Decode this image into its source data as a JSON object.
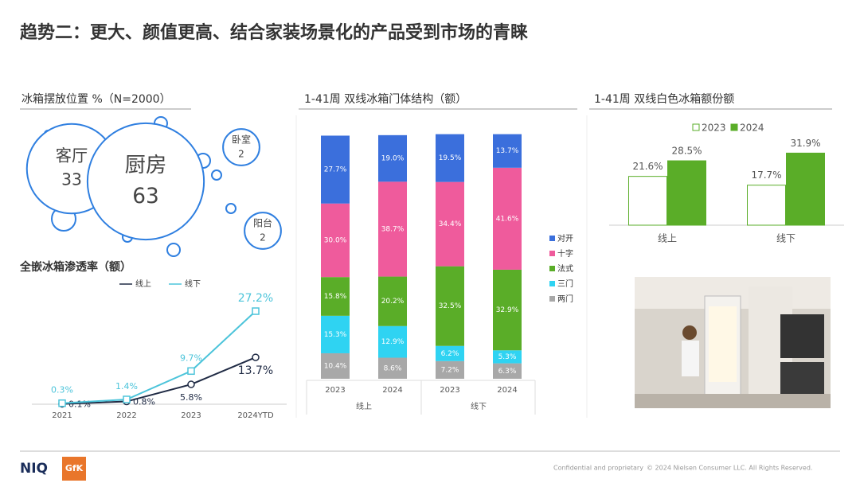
{
  "title": "趋势二：更大、颜值更高、结合家装场景化的产品受到市场的青睐",
  "chart_data": [
    {
      "type": "bubble",
      "title": "冰箱摆放位置 %（N=2000）",
      "categories": [
        "客厅",
        "厨房",
        "卧室",
        "阳台"
      ],
      "values": [
        33,
        63,
        2,
        2
      ],
      "color": "#2f7fe0"
    },
    {
      "type": "line",
      "title": "全嵌冰箱渗透率（额）",
      "categories": [
        "2021",
        "2022",
        "2023",
        "2024YTD"
      ],
      "series": [
        {
          "name": "线上",
          "color": "#1f2a44",
          "values": [
            0.1,
            0.8,
            5.8,
            13.7
          ],
          "value_labels": [
            "0.1%",
            "0.8%",
            "5.8%",
            "13.7%"
          ]
        },
        {
          "name": "线下",
          "color": "#4cc4da",
          "values": [
            0.3,
            1.4,
            9.7,
            27.2
          ],
          "value_labels": [
            "0.3%",
            "1.4%",
            "9.7%",
            "27.2%"
          ]
        }
      ]
    },
    {
      "type": "bar",
      "stacked": true,
      "title": "1-41周 双线冰箱门体结构（额）",
      "categories": [
        "2023",
        "2024",
        "2023",
        "2024"
      ],
      "groups": [
        "线上",
        "线下"
      ],
      "series": [
        {
          "name": "对开",
          "color": "#3b6fdc",
          "values": [
            27.7,
            19.0,
            19.5,
            13.7
          ],
          "value_labels": [
            "27.7%",
            "19.0%",
            "19.5%",
            "13.7%"
          ]
        },
        {
          "name": "十字",
          "color": "#ef5b9c",
          "values": [
            30.0,
            38.7,
            34.4,
            41.6
          ],
          "value_labels": [
            "30.0%",
            "38.7%",
            "34.4%",
            "41.6%"
          ]
        },
        {
          "name": "法式",
          "color": "#5aad28",
          "values": [
            15.8,
            20.2,
            32.5,
            32.9
          ],
          "value_labels": [
            "15.8%",
            "20.2%",
            "32.5%",
            "32.9%"
          ]
        },
        {
          "name": "三门",
          "color": "#2fd3f2",
          "values": [
            15.3,
            12.9,
            6.2,
            5.3
          ],
          "value_labels": [
            "15.3%",
            "12.9%",
            "6.2%",
            "5.3%"
          ]
        },
        {
          "name": "两门",
          "color": "#a8a8a8",
          "values": [
            10.4,
            8.6,
            7.2,
            6.3
          ],
          "value_labels": [
            "10.4%",
            "8.6%",
            "7.2%",
            "6.3%"
          ]
        }
      ]
    },
    {
      "type": "bar",
      "title": "1-41周 双线白色冰箱额份额",
      "categories": [
        "线上",
        "线下"
      ],
      "series": [
        {
          "name": "2023",
          "color": "#5aad28",
          "fill": "#ffffff",
          "values": [
            21.6,
            17.7
          ],
          "value_labels": [
            "21.6%",
            "17.7%"
          ]
        },
        {
          "name": "2024",
          "color": "#5aad28",
          "fill": "#5aad28",
          "values": [
            28.5,
            31.9
          ],
          "value_labels": [
            "28.5%",
            "31.9%"
          ]
        }
      ]
    }
  ],
  "footer": {
    "logo1": "NIQ",
    "logo2": "GfK",
    "note": "Confidential and proprietary",
    "copyright": "© 2024 Nielsen Consumer LLC. All Rights Reserved."
  }
}
